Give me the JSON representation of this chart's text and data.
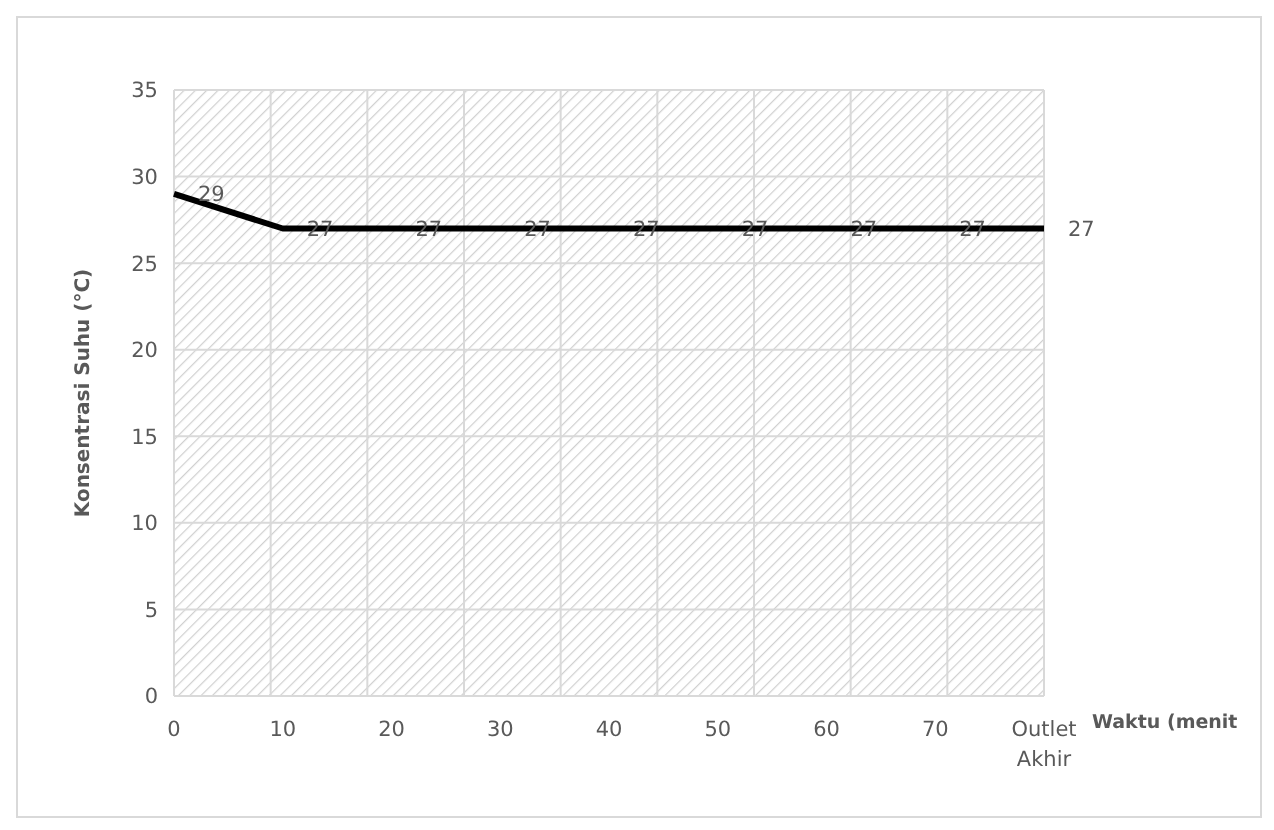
{
  "chart_data": {
    "type": "line",
    "xlabel": "Waktu (menit",
    "ylabel": "Konsentrasi Suhu (°C)",
    "categories": [
      "0",
      "10",
      "20",
      "30",
      "40",
      "50",
      "60",
      "70",
      "Outlet Akhir"
    ],
    "series": [
      {
        "color": "#000000",
        "values": [
          29,
          27,
          27,
          27,
          27,
          27,
          27,
          27,
          27
        ]
      }
    ],
    "ylim": [
      0,
      35
    ],
    "yticks": [
      0,
      5,
      10,
      15,
      20,
      25,
      30,
      35
    ],
    "grid": true,
    "data_labels": true,
    "marker": "none",
    "line_style": "solid"
  }
}
